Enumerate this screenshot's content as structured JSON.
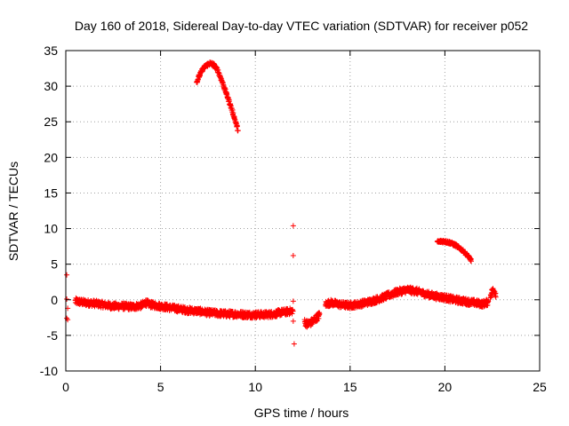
{
  "chart_data": {
    "type": "scatter",
    "title": "Day 160 of 2018, Sidereal Day-to-day VTEC variation (SDTVAR) for receiver p052",
    "xlabel": "GPS time / hours",
    "ylabel": "SDTVAR / TECUs",
    "xlim": [
      0,
      25
    ],
    "ylim": [
      -10,
      35
    ],
    "xticks": [
      0,
      5,
      10,
      15,
      20,
      25
    ],
    "yticks": [
      -10,
      -5,
      0,
      5,
      10,
      15,
      20,
      25,
      30,
      35
    ],
    "xtick_labels": [
      "0",
      "5",
      "10",
      "15",
      "20",
      "25"
    ],
    "ytick_labels": [
      "-10",
      "-5",
      "0",
      "5",
      "10",
      "15",
      "20",
      "25",
      "30",
      "35"
    ],
    "grid": true,
    "marker": "+",
    "color": "#ff0000",
    "series": [
      {
        "name": "main-band",
        "spread": 0.45,
        "x": [
          0.5,
          1.0,
          1.5,
          2.0,
          2.5,
          3.0,
          3.5,
          4.0,
          4.2,
          4.5,
          5.0,
          5.5,
          6.0,
          6.5,
          7.0,
          7.5,
          8.0,
          8.5,
          9.0,
          9.5,
          10.0,
          10.5,
          11.0,
          11.3,
          11.6,
          11.9,
          12.0
        ],
        "y": [
          -0.2,
          -0.4,
          -0.5,
          -0.7,
          -0.9,
          -0.9,
          -1.0,
          -0.8,
          -0.4,
          -0.7,
          -0.9,
          -1.1,
          -1.3,
          -1.5,
          -1.6,
          -1.8,
          -1.9,
          -2.0,
          -2.0,
          -2.1,
          -2.1,
          -2.1,
          -2.0,
          -1.8,
          -1.7,
          -1.6,
          -1.5
        ]
      },
      {
        "name": "post-gap-dip",
        "spread": 0.5,
        "x": [
          12.6,
          12.8,
          13.0,
          13.2,
          13.4
        ],
        "y": [
          -3.2,
          -3.4,
          -3.1,
          -2.6,
          -2.1
        ]
      },
      {
        "name": "afternoon-band",
        "spread": 0.45,
        "x": [
          13.7,
          14.0,
          14.5,
          15.0,
          15.5,
          16.0,
          16.5,
          17.0,
          17.5,
          18.0,
          18.5,
          19.0,
          19.5,
          20.0,
          20.5,
          21.0,
          21.5,
          22.0,
          22.3
        ],
        "y": [
          -0.6,
          -0.4,
          -0.7,
          -0.8,
          -0.6,
          -0.3,
          0.1,
          0.6,
          1.1,
          1.4,
          1.2,
          0.8,
          0.5,
          0.3,
          0.0,
          -0.2,
          -0.4,
          -0.6,
          -0.3
        ]
      },
      {
        "name": "end-cluster",
        "spread": 0.5,
        "x": [
          22.4,
          22.5,
          22.6,
          22.7
        ],
        "y": [
          0.6,
          1.2,
          1.3,
          0.8
        ]
      },
      {
        "name": "morning-arc",
        "spread": 0.25,
        "x": [
          6.9,
          7.0,
          7.2,
          7.4,
          7.6,
          7.8,
          8.0,
          8.2,
          8.4,
          8.6,
          8.8,
          9.0,
          9.1
        ],
        "y": [
          30.5,
          31.2,
          32.3,
          32.9,
          33.2,
          33.0,
          32.3,
          31.0,
          29.5,
          28.0,
          26.4,
          24.6,
          23.7
        ]
      },
      {
        "name": "evening-arc",
        "spread": 0.2,
        "x": [
          19.6,
          19.8,
          20.0,
          20.3,
          20.6,
          20.9,
          21.2,
          21.4
        ],
        "y": [
          8.1,
          8.2,
          8.2,
          8.0,
          7.6,
          7.0,
          6.2,
          5.5
        ]
      },
      {
        "name": "outliers",
        "spread": 0,
        "x": [
          0.05,
          0.05,
          0.1,
          0.05,
          0.1,
          12.0,
          12.0,
          12.0,
          12.0,
          12.05,
          11.95
        ],
        "y": [
          3.5,
          -2.6,
          -2.8,
          0.1,
          -1.2,
          10.4,
          6.2,
          -0.2,
          -3.0,
          -6.2,
          -1.6
        ]
      }
    ]
  }
}
